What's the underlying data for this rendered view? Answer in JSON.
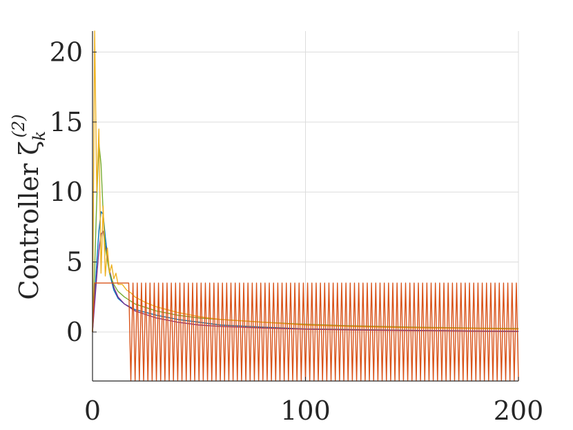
{
  "chart_data": {
    "type": "line",
    "title": "",
    "xlabel": "",
    "ylabel": "Controller ζ",
    "ylabel_superscript": "(2)",
    "ylabel_subscript": "k",
    "xlim": [
      0,
      200
    ],
    "ylim": [
      -3.5,
      21.5
    ],
    "xticks": [
      0,
      100,
      200
    ],
    "yticks": [
      0,
      5,
      10,
      15,
      20
    ],
    "grid": true,
    "legend": "none",
    "series": [
      {
        "color": "#0072BD",
        "x": [
          0,
          1,
          2,
          3,
          4,
          5,
          6,
          8,
          10,
          12,
          15,
          20,
          30,
          40,
          50,
          60,
          80,
          100,
          120,
          150,
          180,
          200
        ],
        "y": [
          0,
          2.5,
          5.0,
          7.2,
          8.6,
          8.4,
          6.8,
          4.2,
          3.0,
          2.4,
          2.0,
          1.6,
          1.2,
          0.9,
          0.7,
          0.5,
          0.35,
          0.22,
          0.18,
          0.12,
          0.07,
          0.05
        ]
      },
      {
        "color": "#7E2F8E",
        "x": [
          0,
          1,
          2,
          3,
          4,
          5,
          6,
          8,
          10,
          12,
          15,
          20,
          30,
          40,
          50,
          60,
          80,
          100,
          120,
          150,
          180,
          200
        ],
        "y": [
          0,
          2.0,
          4.0,
          5.8,
          7.0,
          7.2,
          6.2,
          4.4,
          3.2,
          2.5,
          2.0,
          1.5,
          1.0,
          0.7,
          0.5,
          0.4,
          0.28,
          0.2,
          0.15,
          0.1,
          0.06,
          0.04
        ]
      },
      {
        "color": "#77AC30",
        "x": [
          0,
          1,
          2,
          3,
          4,
          5,
          6,
          8,
          10,
          12,
          15,
          20,
          30,
          40,
          50,
          60,
          80,
          100,
          120,
          150,
          180,
          200
        ],
        "y": [
          0,
          4.5,
          9.5,
          13.5,
          12.0,
          8.5,
          6.0,
          4.2,
          3.4,
          2.9,
          2.5,
          2.0,
          1.5,
          1.2,
          1.0,
          0.9,
          0.7,
          0.55,
          0.45,
          0.35,
          0.28,
          0.25
        ]
      },
      {
        "color": "#EDB120",
        "x": [
          0,
          1,
          2,
          3,
          4,
          5,
          6,
          7,
          8,
          9,
          10,
          11,
          12,
          14,
          16,
          18,
          20,
          25,
          30,
          40,
          50,
          60,
          80,
          100,
          120,
          150,
          180,
          200
        ],
        "y": [
          0,
          21.5,
          10,
          14.5,
          4.2,
          9.0,
          4.0,
          6.0,
          4.2,
          4.8,
          3.8,
          4.2,
          3.4,
          3.4,
          3.0,
          2.8,
          2.5,
          2.1,
          1.8,
          1.4,
          1.1,
          0.9,
          0.7,
          0.5,
          0.4,
          0.3,
          0.25,
          0.2
        ]
      },
      {
        "color": "#D95319",
        "saturation_high": 3.5,
        "saturation_low": -3.5,
        "oscillation_start": 17,
        "period": 2,
        "x": [
          0,
          1,
          2,
          16,
          17,
          200
        ],
        "y": [
          0,
          3.5,
          3.5,
          3.5,
          -3.5,
          -3.5
        ]
      }
    ]
  }
}
